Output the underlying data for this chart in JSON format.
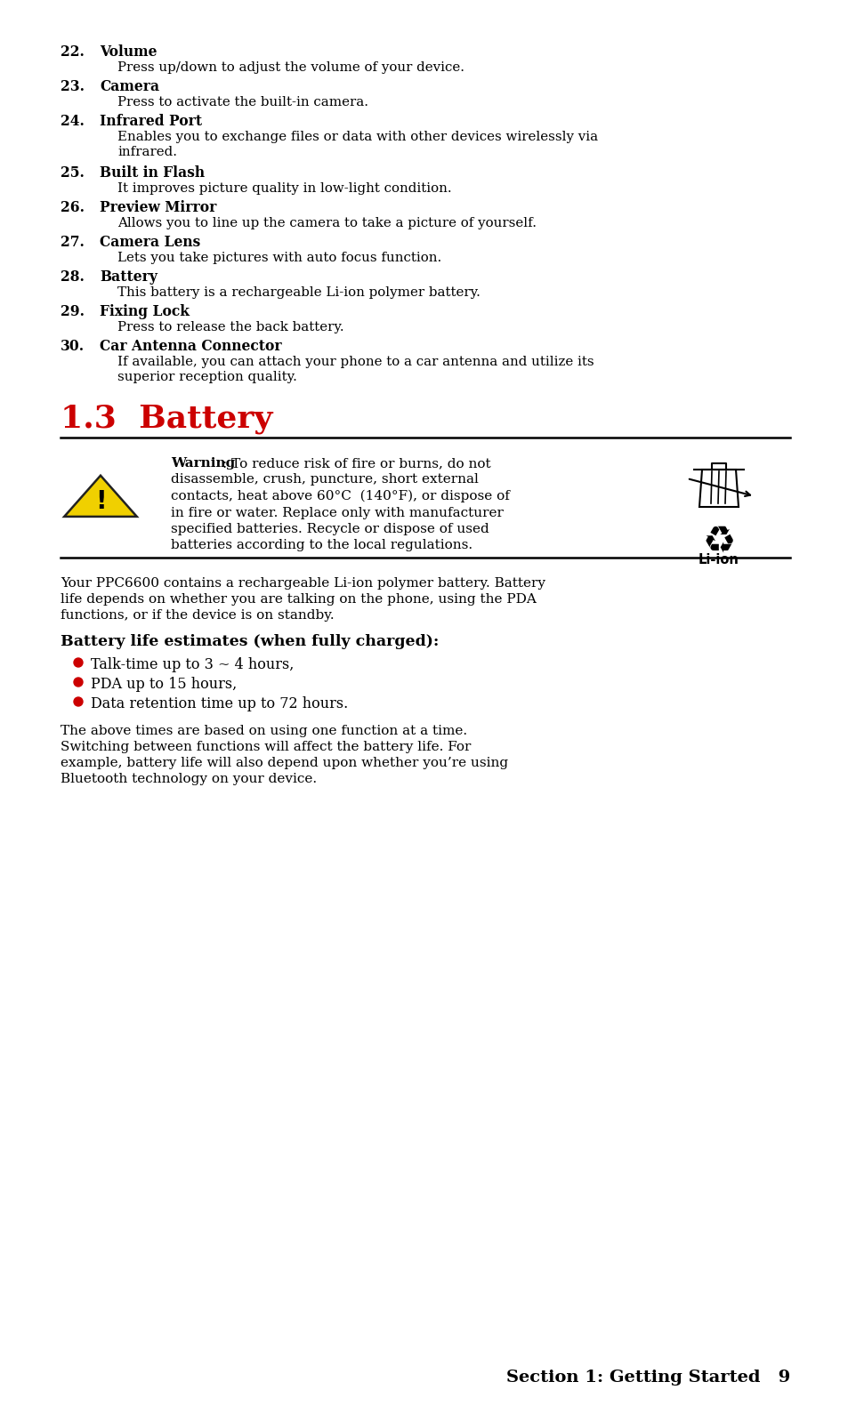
{
  "bg_color": "#ffffff",
  "text_color": "#000000",
  "red_color": "#cc0000",
  "bullet_color": "#cc0000",
  "section_title": "1.3  Battery",
  "footer_text": "Section 1: Getting Started   9",
  "items": [
    {
      "num": "22.",
      "bold": "Volume",
      "body": "Press up/down to adjust the volume of your device.",
      "multiline": false
    },
    {
      "num": "23.",
      "bold": "Camera",
      "body": "Press to activate the built-in camera.",
      "multiline": false
    },
    {
      "num": "24.",
      "bold": "Infrared Port",
      "body": "Enables you to exchange files or data with other devices wirelessly via\ninfrared.",
      "multiline": true
    },
    {
      "num": "25.",
      "bold": "Built in Flash",
      "body": "It improves picture quality in low-light condition.",
      "multiline": false
    },
    {
      "num": "26.",
      "bold": "Preview Mirror",
      "body": "Allows you to line up the camera to take a picture of yourself.",
      "multiline": false
    },
    {
      "num": "27.",
      "bold": "Camera Lens",
      "body": "Lets you take pictures with auto focus function.",
      "multiline": false
    },
    {
      "num": "28.",
      "bold": "Battery",
      "body": "This battery is a rechargeable Li-ion polymer battery.",
      "multiline": false
    },
    {
      "num": "29.",
      "bold": "Fixing Lock",
      "body": "Press to release the back battery.",
      "multiline": false
    },
    {
      "num": "30.",
      "bold": "Car Antenna Connector",
      "body": "If available, you can attach your phone to a car antenna and utilize its\nsuperior reception quality.",
      "multiline": true
    }
  ],
  "warning_bold": "Warning",
  "warning_rest": ": To reduce risk of fire or burns, do not",
  "warning_lines": [
    "disassemble, crush, puncture, short external",
    "contacts, heat above 60°C  (140°F), or dispose of",
    "in fire or water. Replace only with manufacturer",
    "specified batteries. Recycle or dispose of used",
    "batteries according to the local regulations."
  ],
  "intro_text": "Your PPC6600 contains a rechargeable Li-ion polymer battery. Battery\nlife depends on whether you are talking on the phone, using the PDA\nfunctions, or if the device is on standby.",
  "battery_heading": "Battery life estimates (when fully charged):",
  "bullets": [
    "Talk-time up to 3 ~ 4 hours,",
    "PDA up to 15 hours,",
    "Data retention time up to 72 hours."
  ],
  "closing_text": "The above times are based on using one function at a time.\nSwitching between functions will affect the battery life. For\nexample, battery life will also depend upon whether you’re using\nBluetooth technology on your device."
}
